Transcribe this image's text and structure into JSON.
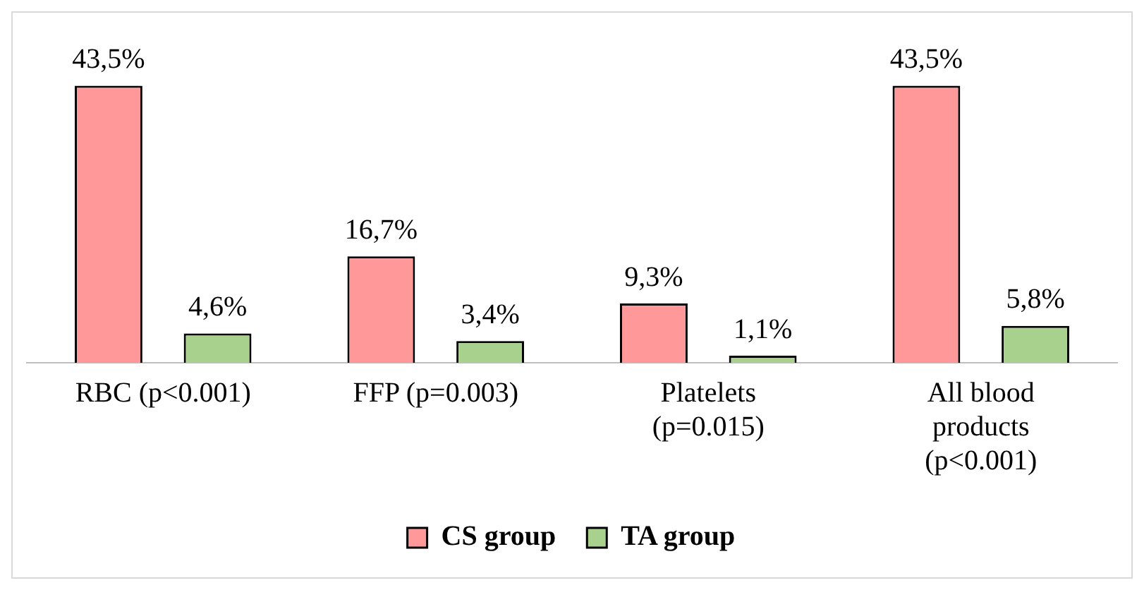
{
  "chart_data": {
    "type": "bar",
    "categories": [
      "RBC (p<0.001)",
      "FFP (p=0.003)",
      "Platelets (p=0.015)",
      "All blood products (p<0.001)"
    ],
    "series": [
      {
        "name": "CS group",
        "color": "#ff9999",
        "values": [
          43.5,
          16.7,
          9.3,
          43.5
        ],
        "value_labels": [
          "43,5%",
          "16,7%",
          "9,3%",
          "43,5%"
        ]
      },
      {
        "name": "TA group",
        "color": "#a9d18e",
        "values": [
          4.6,
          3.4,
          1.1,
          5.8
        ],
        "value_labels": [
          "4,6%",
          "3,4%",
          "1,1%",
          "5,8%"
        ]
      }
    ],
    "legend": "bottom",
    "grid": false
  }
}
